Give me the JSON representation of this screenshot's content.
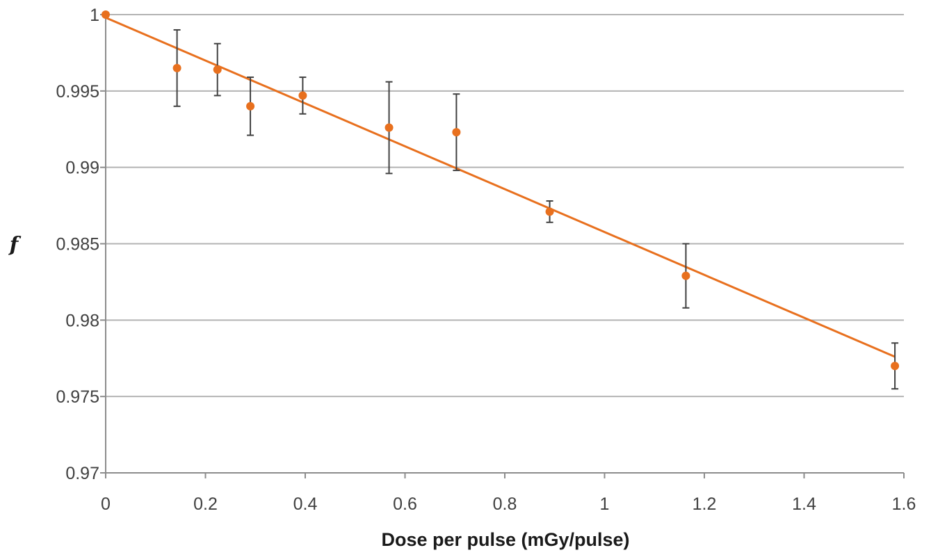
{
  "chart_data": {
    "type": "scatter",
    "xlabel": "Dose per pulse (mGy/pulse)",
    "ylabel": "f",
    "xlim": [
      0,
      1.6
    ],
    "ylim": [
      0.97,
      1.0
    ],
    "x_ticks": [
      "0",
      "0.2",
      "0.4",
      "0.6",
      "0.8",
      "1",
      "1.2",
      "1.4",
      "1.6"
    ],
    "y_ticks": [
      "1",
      "0.995",
      "0.99",
      "0.985",
      "0.98",
      "0.975",
      "0.97"
    ],
    "grid": "horizontal",
    "legend": "none",
    "series": [
      {
        "x": [
          0,
          0.143,
          0.224,
          0.29,
          0.395,
          0.568,
          0.703,
          0.89,
          1.163,
          1.582
        ],
        "y": [
          1.0,
          0.9965,
          0.9964,
          0.994,
          0.9947,
          0.9926,
          0.9923,
          0.9871,
          0.9829,
          0.977
        ],
        "y_error": [
          0,
          0.0025,
          0.0017,
          0.0019,
          0.0012,
          0.003,
          0.0025,
          0.0007,
          0.0021,
          0.0015
        ]
      }
    ],
    "trendline": {
      "type": "linear",
      "x": [
        0,
        1.582
      ],
      "y": [
        0.9998,
        0.9776
      ]
    },
    "colors": {
      "points": "#e8701e",
      "trendline": "#e8701e",
      "error_bars": "#404040",
      "grid": "#b3b3b3",
      "axis": "#8c8c8c"
    }
  }
}
